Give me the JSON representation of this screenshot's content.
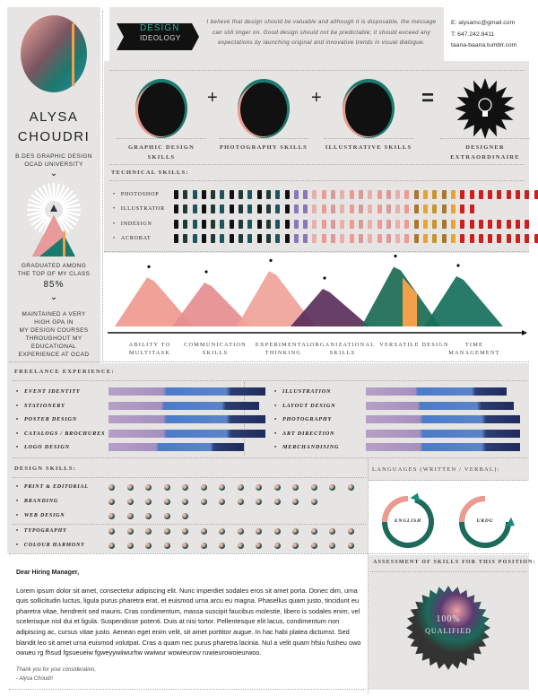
{
  "profile": {
    "name_first": "ALYSA",
    "name_last": "CHOUDRI",
    "degree": "B.DES GRAPHIC DESIGN",
    "school": "OCAD UNIVERSITY",
    "graduated": "GRADUATED AMONG",
    "graduated2": "THE TOP OF MY CLASS",
    "percent": "85%",
    "gpa_lines": [
      "MAINTAINED A VERY",
      "HIGH GPA IN",
      "MY DESIGN COURSES",
      "THROUGHOUT MY",
      "EDUCATIONAL",
      "EXPERIENCE AT OCAD"
    ]
  },
  "ideology": {
    "label1": "DESIGN",
    "label2": "IDEOLOGY",
    "text": "I believe that design should be valuable and although it is disposable, the message can still linger on. Good design should not be predictable; it should exceed any expectations by launching original and innovative trends in visual dialogue."
  },
  "contact": {
    "email": "E: alysamc@gmail.com",
    "phone": "T: 647.242.8411",
    "web": "taana-baana.tumblr.com"
  },
  "equation": {
    "items": [
      "GRAPHIC DESIGN SKILLS",
      "PHOTOGRAPHY SKILLS",
      "ILLUSTRATIVE SKILLS",
      "DESIGNER EXTRAORDINAIRE"
    ],
    "plus": "+",
    "equals": "="
  },
  "technical": {
    "title": "TECHNICAL SKILLS:",
    "max": 40,
    "skills": [
      {
        "name": "PHOTOSHOP",
        "level": 40
      },
      {
        "name": "ILLUSTRATOR",
        "level": 33
      },
      {
        "name": "INDESIGN",
        "level": 39
      },
      {
        "name": "ACROBAT",
        "level": 40
      }
    ]
  },
  "traits": [
    {
      "label": "ABILITY TO MULTITASK",
      "level": 0.78
    },
    {
      "label": "COMMUNICATION SKILLS",
      "level": 0.7
    },
    {
      "label": "EXPERIMENTAL THINKING",
      "level": 0.88
    },
    {
      "label": "ORGANIZATIONAL SKILLS",
      "level": 0.6
    },
    {
      "label": "VERSATILE DESIGN",
      "level": 0.95
    },
    {
      "label": "TIME MANAGEMENT",
      "level": 0.8
    }
  ],
  "freelance": {
    "title": "FREELANCE EXPERIENCE:",
    "left": [
      {
        "name": "EVENT IDENTITY",
        "level": 1
      },
      {
        "name": "STATIONERY",
        "level": 0.96
      },
      {
        "name": "POSTER DESIGN",
        "level": 1
      },
      {
        "name": "CATALOGS / BROCHURES",
        "level": 1
      },
      {
        "name": "LOGO DESIGN",
        "level": 0.86
      }
    ],
    "right": [
      {
        "name": "ILLUSTRATION",
        "level": 0.91
      },
      {
        "name": "LAYOUT DESIGN",
        "level": 0.96
      },
      {
        "name": "PHOTOGRAPHY",
        "level": 1
      },
      {
        "name": "ART DIRECTION",
        "level": 1
      },
      {
        "name": "MERCHANDISING",
        "level": 1
      }
    ]
  },
  "design_skills": {
    "title": "DESIGN SKILLS:",
    "max": 14,
    "group1": [
      {
        "name": "PRINT & EDITORIAL",
        "level": 14
      },
      {
        "name": "BRANDING",
        "level": 12
      },
      {
        "name": "WEB DESIGN",
        "level": 5
      }
    ],
    "group2": [
      {
        "name": "TYPOGRAPHY",
        "level": 14
      },
      {
        "name": "COLOUR HARMONY",
        "level": 14
      }
    ]
  },
  "languages": {
    "title": "LANGUAGES (WRITTEN / VERBAL):",
    "items": [
      {
        "name": "ENGLISH",
        "level": 0.95
      },
      {
        "name": "URDU",
        "level": 0.75
      }
    ]
  },
  "letter": {
    "greeting": "Dear Hiring Manager,",
    "body": "Lorem ipsum dolor sit amet, consectetur adipiscing elit. Nunc imperdiet sodales eros sit amet porta. Donec dim, urna quis sollicitudin luctus, ligula purus pharetra erat, et euismod urna arcu eu magna. Phasellus quam justo, tincidunt eu pharetra vitae, hendrerit sed mauris. Cras condimentum, massa suscipit faucibus molestie, libero is sodales enim, vel scelerisque nisl dui et ligula. Suspendisse potenti. Duis at nisi tortor. Pellentesque elit lacus, condimentum non adipiscing ac, cursus vitae justo. Aenean eget enim velit, sit amet porttitor augue. In hac habi platea dictumst. Sed blandit leo sit amet urna euismod volutpat. Cras a quam nec purus pharetra lacinia. Nul a velit quam hfsiu fusheu owo owueu rg fhsud fgsueueiw fgweyywiiwurhw wwiwur wowieurow ruwieurowoieurwoo.",
    "closing": "Thank you for your consideration,",
    "signature": "- Alysa Choudri"
  },
  "assessment": {
    "title": "ASSESSMENT OF SKILLS FOR THIS POSITION:",
    "value": "100%",
    "label": "QUALIFIED"
  },
  "colors": {
    "panel": "#e6e5e3",
    "teal": "#1b7a6e",
    "pink": "#ef9a90",
    "orange": "#f2a04a",
    "red": "#cc1f1f",
    "navy": "#1f2b5c"
  }
}
